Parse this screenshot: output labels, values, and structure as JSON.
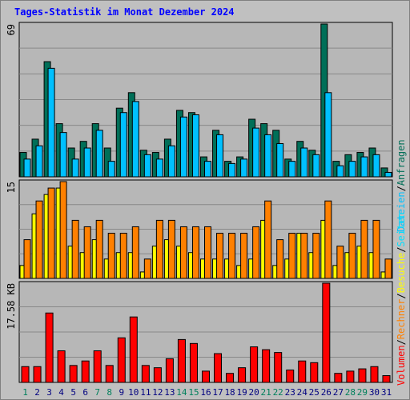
{
  "title": "Tages-Statistik im Monat Dezember 2024",
  "colors": {
    "background": "#c0c0c0",
    "panel_bg": "#b7b7b7",
    "grid": "#888888",
    "title": "#0000ff",
    "anfragen": "#006f58",
    "dateien": "#00c0ff",
    "seiten": "#00e0ff",
    "besuche": "#ffff00",
    "rechner": "#ff8000",
    "volumen": "#ff0000",
    "weekend_day": "#00805c",
    "weekday_day": "#000080"
  },
  "chart_data": [
    {
      "type": "bar",
      "categories": [
        "1",
        "2",
        "3",
        "4",
        "5",
        "6",
        "7",
        "8",
        "9",
        "10",
        "11",
        "12",
        "13",
        "14",
        "15",
        "16",
        "17",
        "18",
        "19",
        "20",
        "21",
        "22",
        "23",
        "24",
        "25",
        "26",
        "27",
        "28",
        "29",
        "30",
        "31"
      ],
      "weekend_days": [
        "1",
        "7",
        "8",
        "14",
        "15",
        "21",
        "22",
        "28",
        "29"
      ],
      "y_max_label": "69",
      "ylim": [
        0,
        69
      ],
      "series": [
        {
          "name": "Anfragen",
          "values": [
            11,
            17,
            52,
            24,
            13,
            16,
            24,
            13,
            31,
            38,
            12,
            11,
            17,
            30,
            29,
            9,
            21,
            7,
            9,
            26,
            24,
            21,
            8,
            16,
            12,
            69,
            7,
            10,
            11,
            13,
            4
          ]
        },
        {
          "name": "Dateien",
          "values": [
            8,
            14,
            49,
            20,
            8,
            13,
            21,
            7,
            29,
            34,
            10,
            8,
            14,
            27,
            28,
            7,
            19,
            6,
            8,
            22,
            19,
            15,
            7,
            13,
            10,
            38,
            5,
            7,
            9,
            10,
            2
          ]
        }
      ],
      "right_labels": [
        "Anfragen",
        "Dateien"
      ]
    },
    {
      "type": "bar",
      "categories": [
        "1",
        "2",
        "3",
        "4",
        "5",
        "6",
        "7",
        "8",
        "9",
        "10",
        "11",
        "12",
        "13",
        "14",
        "15",
        "16",
        "17",
        "18",
        "19",
        "20",
        "21",
        "22",
        "23",
        "24",
        "25",
        "26",
        "27",
        "28",
        "29",
        "30",
        "31"
      ],
      "y_max_label": "15",
      "ylim": [
        0,
        15
      ],
      "series": [
        {
          "name": "Besuche",
          "values": [
            2,
            10,
            13,
            14,
            5,
            4,
            6,
            3,
            4,
            4,
            1,
            5,
            6,
            5,
            4,
            3,
            3,
            3,
            2,
            3,
            9,
            2,
            3,
            7,
            4,
            9,
            2,
            4,
            5,
            4,
            1
          ]
        },
        {
          "name": "Rechner",
          "values": [
            6,
            12,
            14,
            15,
            9,
            8,
            9,
            7,
            7,
            8,
            3,
            9,
            9,
            8,
            8,
            8,
            7,
            7,
            7,
            8,
            12,
            6,
            7,
            7,
            7,
            12,
            5,
            7,
            9,
            9,
            3
          ]
        }
      ],
      "right_labels": [
        "Seiten",
        "Besuche",
        "Rechner"
      ]
    },
    {
      "type": "bar",
      "categories": [
        "1",
        "2",
        "3",
        "4",
        "5",
        "6",
        "7",
        "8",
        "9",
        "10",
        "11",
        "12",
        "13",
        "14",
        "15",
        "16",
        "17",
        "18",
        "19",
        "20",
        "21",
        "22",
        "23",
        "24",
        "25",
        "26",
        "27",
        "28",
        "29",
        "30",
        "31"
      ],
      "y_max_label": "17.58 KB",
      "ylim": [
        0,
        17.58
      ],
      "series": [
        {
          "name": "Volumen",
          "values": [
            2.8,
            2.8,
            12.3,
            5.6,
            3.0,
            3.8,
            5.6,
            3.0,
            7.9,
            11.6,
            3.0,
            2.6,
            4.2,
            7.6,
            6.9,
            2.0,
            5.1,
            1.6,
            2.6,
            6.3,
            5.8,
            5.3,
            2.2,
            3.8,
            3.5,
            17.58,
            1.6,
            2.0,
            2.4,
            2.8,
            1.2
          ]
        }
      ],
      "right_labels": [
        "Volumen"
      ]
    }
  ]
}
